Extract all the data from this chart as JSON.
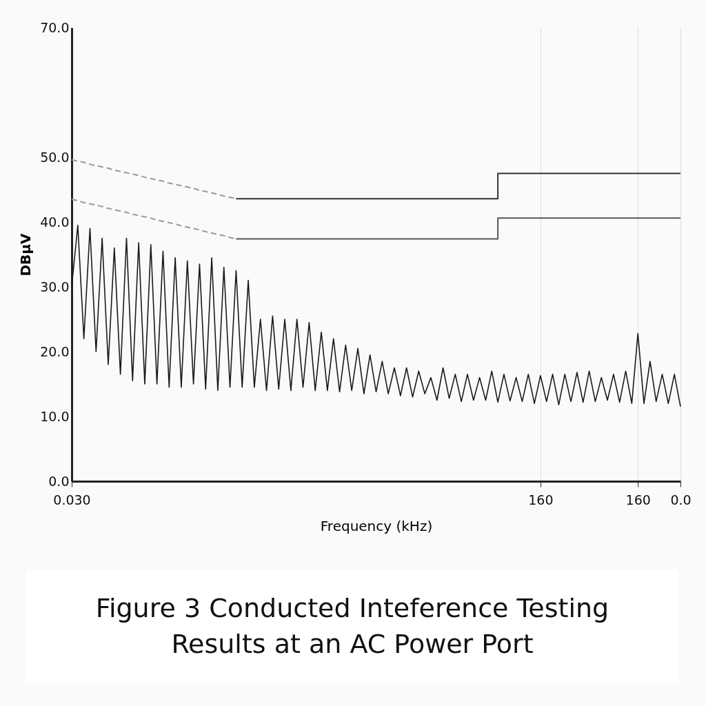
{
  "chart_data": {
    "type": "line",
    "title": "Figure 3  Conducted Inteference Testing Results at an AC Power Port",
    "xlabel": "Frequency (kHz)",
    "ylabel": "DBμV",
    "categories": [
      "0.030",
      null,
      null,
      null,
      null,
      null,
      null,
      null,
      null,
      null,
      null,
      null,
      null,
      null,
      null,
      null,
      null,
      null,
      null,
      null,
      null,
      null,
      null,
      null,
      null,
      null,
      null,
      null,
      null,
      null,
      null,
      null,
      null,
      null,
      null,
      null,
      null,
      null,
      null,
      null,
      null,
      null,
      null,
      null,
      null,
      null,
      null,
      null,
      null,
      null,
      null,
      null,
      null,
      null,
      null,
      null,
      null,
      null,
      null,
      null,
      null,
      null,
      null,
      null,
      null,
      null,
      null,
      null,
      null,
      null,
      null,
      null,
      null,
      null,
      null,
      null,
      null,
      "160",
      null,
      null,
      null,
      null,
      null,
      null,
      null,
      null,
      null,
      null,
      null,
      null,
      null,
      null,
      null,
      "160",
      null,
      null,
      null,
      null,
      null,
      null,
      "0.0"
    ],
    "ylim": [
      0,
      70
    ],
    "yticks": [
      {
        "value": 0,
        "label": "0.0"
      },
      {
        "value": 10,
        "label": "10.0"
      },
      {
        "value": 20,
        "label": "20.0"
      },
      {
        "value": 30,
        "label": "30.0"
      },
      {
        "value": 40,
        "label": "40.0"
      },
      {
        "value": 50,
        "label": "50.0"
      },
      {
        "value": 70,
        "label": "70.0"
      }
    ],
    "grid": "x",
    "series": [
      {
        "color": "#999999",
        "line_style": "dashed",
        "values": [
          49.6,
          49.4,
          49.2,
          48.9,
          48.7,
          48.5,
          48.3,
          48.0,
          47.8,
          47.6,
          47.4,
          47.2,
          46.9,
          46.7,
          46.5,
          46.3,
          46.0,
          45.8,
          45.6,
          45.4,
          45.2,
          44.9,
          44.7,
          44.5,
          44.3,
          44.0,
          43.8,
          43.6,
          null,
          null,
          null,
          null,
          null,
          null,
          null,
          null,
          null,
          null,
          null,
          null,
          null,
          null,
          null,
          null,
          null,
          null,
          null,
          null,
          null,
          null,
          null,
          null,
          null,
          null,
          null,
          null,
          null,
          null,
          null,
          null,
          null,
          null,
          null,
          null,
          null,
          null,
          null,
          null,
          null,
          null,
          null,
          null,
          null,
          null,
          null,
          null,
          null,
          null,
          null,
          null,
          null,
          null,
          null,
          null,
          null,
          null,
          null,
          null,
          null,
          null,
          null,
          null,
          null,
          null,
          null,
          null,
          null,
          null,
          null,
          null,
          null
        ]
      },
      {
        "type": "step",
        "color": "#333333",
        "line_style": "solid",
        "values": [
          null,
          null,
          null,
          null,
          null,
          null,
          null,
          null,
          null,
          null,
          null,
          null,
          null,
          null,
          null,
          null,
          null,
          null,
          null,
          null,
          null,
          null,
          null,
          null,
          null,
          null,
          null,
          43.6,
          43.6,
          43.6,
          43.6,
          43.6,
          43.6,
          43.6,
          43.6,
          43.6,
          43.6,
          43.6,
          43.6,
          43.6,
          43.6,
          43.6,
          43.6,
          43.6,
          43.6,
          43.6,
          43.6,
          43.6,
          43.6,
          43.6,
          43.6,
          43.6,
          43.6,
          43.6,
          43.6,
          43.6,
          43.6,
          43.6,
          43.6,
          43.6,
          43.6,
          43.6,
          43.6,
          43.6,
          43.6,
          43.6,
          43.6,
          43.6,
          43.6,
          43.6,
          47.5,
          47.5,
          47.5,
          47.5,
          47.5,
          47.5,
          47.5,
          47.5,
          47.5,
          47.5,
          47.5,
          47.5,
          47.5,
          47.5,
          47.5,
          47.5,
          47.5,
          47.5,
          47.5,
          47.5,
          47.5,
          47.5,
          47.5,
          47.5,
          47.5,
          47.5,
          47.5,
          47.5,
          47.5,
          47.5,
          47.5
        ]
      },
      {
        "color": "#999999",
        "line_style": "dashed",
        "values": [
          43.5,
          43.3,
          43.0,
          42.8,
          42.6,
          42.4,
          42.1,
          41.9,
          41.7,
          41.5,
          41.2,
          41.0,
          40.8,
          40.6,
          40.3,
          40.1,
          39.9,
          39.7,
          39.4,
          39.2,
          39.0,
          38.8,
          38.5,
          38.3,
          38.1,
          37.9,
          37.6,
          37.4,
          null,
          null,
          null,
          null,
          null,
          null,
          null,
          null,
          null,
          null,
          null,
          null,
          null,
          null,
          null,
          null,
          null,
          null,
          null,
          null,
          null,
          null,
          null,
          null,
          null,
          null,
          null,
          null,
          null,
          null,
          null,
          null,
          null,
          null,
          null,
          null,
          null,
          null,
          null,
          null,
          null,
          null,
          null,
          null,
          null,
          null,
          null,
          null,
          null,
          null,
          null,
          null,
          null,
          null,
          null,
          null,
          null,
          null,
          null,
          null,
          null,
          null,
          null,
          null,
          null,
          null,
          null,
          null,
          null,
          null,
          null,
          null,
          null
        ]
      },
      {
        "type": "step",
        "color": "#555555",
        "line_style": "solid",
        "values": [
          null,
          null,
          null,
          null,
          null,
          null,
          null,
          null,
          null,
          null,
          null,
          null,
          null,
          null,
          null,
          null,
          null,
          null,
          null,
          null,
          null,
          null,
          null,
          null,
          null,
          null,
          null,
          37.4,
          37.4,
          37.4,
          37.4,
          37.4,
          37.4,
          37.4,
          37.4,
          37.4,
          37.4,
          37.4,
          37.4,
          37.4,
          37.4,
          37.4,
          37.4,
          37.4,
          37.4,
          37.4,
          37.4,
          37.4,
          37.4,
          37.4,
          37.4,
          37.4,
          37.4,
          37.4,
          37.4,
          37.4,
          37.4,
          37.4,
          37.4,
          37.4,
          37.4,
          37.4,
          37.4,
          37.4,
          37.4,
          37.4,
          37.4,
          37.4,
          37.4,
          37.4,
          40.6,
          40.6,
          40.6,
          40.6,
          40.6,
          40.6,
          40.6,
          40.6,
          40.6,
          40.6,
          40.6,
          40.6,
          40.6,
          40.6,
          40.6,
          40.6,
          40.6,
          40.6,
          40.6,
          40.6,
          40.6,
          40.6,
          40.6,
          40.6,
          40.6,
          40.6,
          40.6,
          40.6,
          40.6,
          40.6,
          40.6
        ]
      },
      {
        "color": "#1a1a1a",
        "line_style": "solid",
        "values": [
          30,
          39.5,
          22,
          39,
          20,
          37.5,
          18,
          36,
          16.5,
          37.5,
          15.5,
          36.8,
          15,
          36.5,
          15,
          35.5,
          14.5,
          34.5,
          14.5,
          34,
          15,
          33.5,
          14.2,
          34.5,
          14,
          33,
          14.5,
          32.5,
          14.5,
          31,
          14.5,
          25,
          14,
          25.5,
          14.2,
          25,
          14,
          25,
          14.5,
          24.5,
          14,
          23,
          14,
          22,
          13.8,
          21,
          14,
          20.5,
          13.5,
          19.5,
          13.8,
          18.5,
          13.5,
          17.5,
          13.2,
          17.5,
          13,
          17,
          13.5,
          16,
          12.5,
          17.5,
          12.8,
          16.5,
          12.3,
          16.5,
          12.5,
          16,
          12.5,
          17,
          12.2,
          16.5,
          12.4,
          16,
          12.3,
          16.5,
          12,
          16.3,
          12.3,
          16.5,
          11.8,
          16.5,
          12.3,
          16.8,
          12.2,
          17,
          12.3,
          16,
          12.5,
          16.5,
          12.2,
          17,
          12,
          22.8,
          12,
          18.5,
          12.3,
          16.5,
          12,
          16.5,
          11.5
        ]
      }
    ]
  }
}
